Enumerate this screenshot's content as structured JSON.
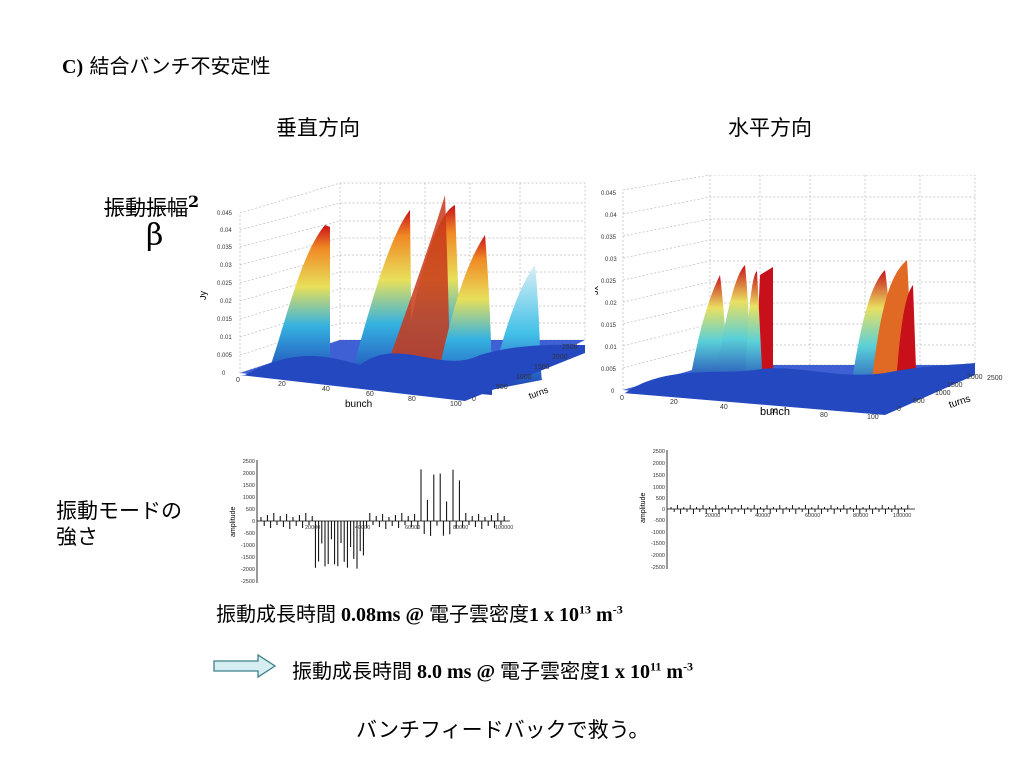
{
  "heading": {
    "prefix": "C)",
    "text": "結合バンチ不安定性"
  },
  "columns": {
    "left": "垂直方向",
    "right": "水平方向"
  },
  "ylabel": {
    "main": "振動振幅",
    "sup": "2",
    "beta": "β"
  },
  "mode_label": {
    "line1": "振動モードの",
    "line2": "強さ"
  },
  "line1": {
    "a": "振動成長時間",
    "b": " 0.08ms @ ",
    "c": "電子雲密度",
    "d": "1 x 10",
    "e": "13",
    "f": " m",
    "g": "-3"
  },
  "line2": {
    "a": "振動成長時間",
    "b": " 8.0  ms @ ",
    "c": "電子雲密度",
    "d": "1 x 10",
    "e": "11",
    "f": " m",
    "g": "-3"
  },
  "conclusion": "バンチフィードバックで救う。",
  "plots": {
    "left3d": {
      "zlabel": "Jy",
      "xlabel": "bunch",
      "ylabel": "turns",
      "zticks": [
        "0",
        "0.005",
        "0.01",
        "0.015",
        "0.02",
        "0.025",
        "0.03",
        "0.035",
        "0.04",
        "0.045"
      ],
      "xticks": [
        "0",
        "20",
        "40",
        "60",
        "80",
        "100"
      ],
      "yticks": [
        "0",
        "500",
        "1000",
        "1500",
        "2000",
        "2500"
      ]
    },
    "right3d": {
      "zlabel": "Jx",
      "xlabel": "bunch",
      "ylabel": "turns",
      "zticks": [
        "0",
        "0.005",
        "0.01",
        "0.015",
        "0.02",
        "0.025",
        "0.03",
        "0.035",
        "0.04",
        "0.045"
      ],
      "xticks": [
        "0",
        "20",
        "40",
        "60",
        "80",
        "100"
      ],
      "yticks": [
        "0",
        "500",
        "1000",
        "1500",
        "2000",
        "2500"
      ]
    },
    "leftmode": {
      "ylabel": "amplitude",
      "yticks": [
        "2500",
        "2000",
        "1500",
        "1000",
        "500",
        "0",
        "-500",
        "-1000",
        "-1500",
        "-2000",
        "-2500"
      ],
      "xticks": [
        "20000",
        "40000",
        "60000",
        "80000",
        "100000"
      ]
    },
    "rightmode": {
      "ylabel": "amplitude",
      "yticks": [
        "2500",
        "2000",
        "1500",
        "1000",
        "500",
        "0",
        "-500",
        "-1000",
        "-1500",
        "-2000",
        "-2500"
      ],
      "xticks": [
        "20000",
        "40000",
        "60000",
        "80000",
        "100000"
      ]
    }
  },
  "colors": {
    "arrow_fill": "#d6eef2",
    "arrow_stroke": "#3e7f8a",
    "surface_low": "#1f3fb5",
    "surface_high": "#c8101a"
  }
}
